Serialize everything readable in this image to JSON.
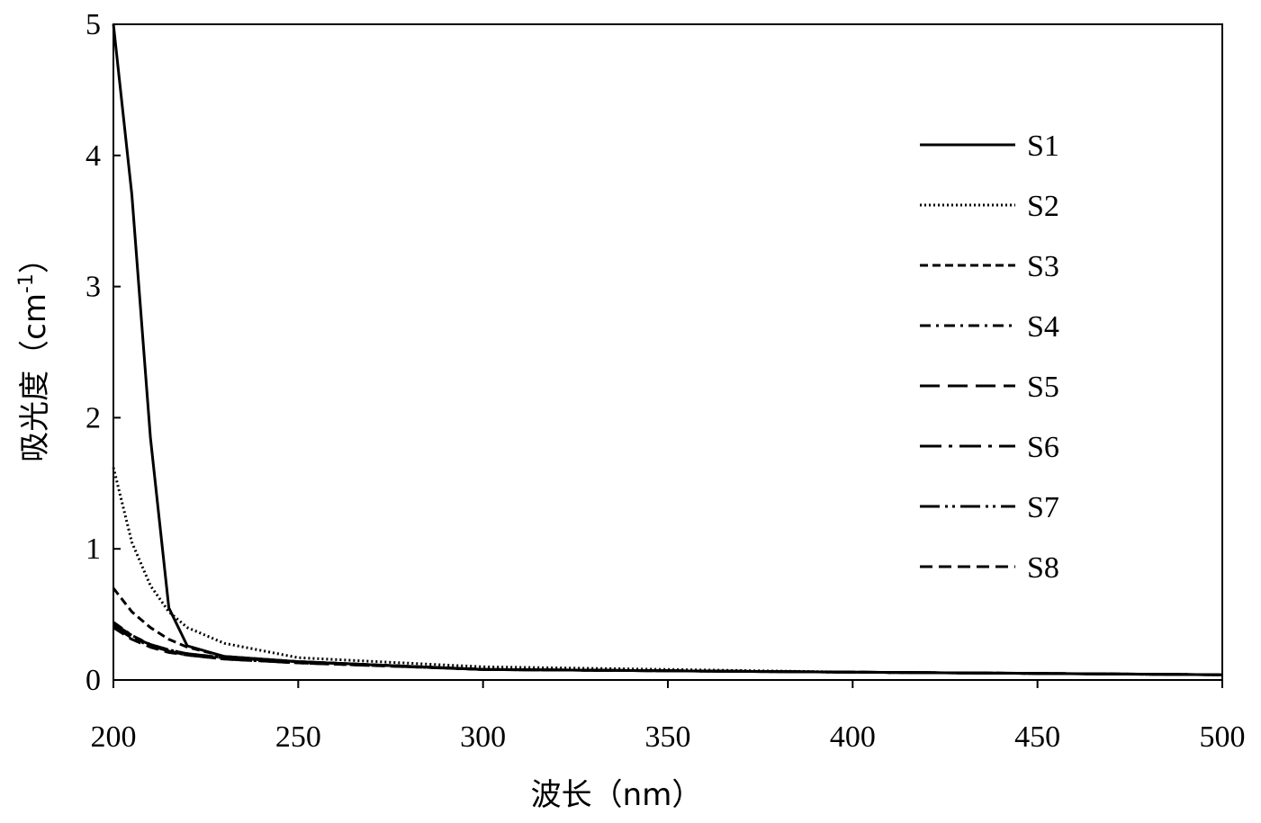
{
  "chart_data": {
    "type": "line",
    "title": "",
    "xlabel": "波长（nm）",
    "ylabel_main": "吸光度（cm",
    "ylabel_sup": "-1",
    "ylabel_close": "）",
    "xlim": [
      200,
      500
    ],
    "ylim": [
      0,
      5
    ],
    "xticks": [
      200,
      250,
      300,
      350,
      400,
      450,
      500
    ],
    "yticks": [
      0,
      1,
      2,
      3,
      4,
      5
    ],
    "grid": false,
    "legend_position": "right",
    "x": [
      200,
      205,
      210,
      215,
      220,
      230,
      250,
      300,
      350,
      400,
      450,
      500
    ],
    "series": [
      {
        "name": "S1",
        "style": "solid",
        "values": [
          5.0,
          3.7,
          1.85,
          0.55,
          0.26,
          0.18,
          0.14,
          0.08,
          0.07,
          0.06,
          0.05,
          0.04
        ]
      },
      {
        "name": "S2",
        "style": "dotted",
        "values": [
          1.62,
          1.05,
          0.72,
          0.52,
          0.4,
          0.28,
          0.17,
          0.1,
          0.08,
          0.06,
          0.05,
          0.04
        ]
      },
      {
        "name": "S3",
        "style": "dashed-short",
        "values": [
          0.7,
          0.52,
          0.4,
          0.31,
          0.25,
          0.18,
          0.14,
          0.08,
          0.07,
          0.06,
          0.05,
          0.04
        ]
      },
      {
        "name": "S4",
        "style": "dash-dot-short",
        "values": [
          0.44,
          0.34,
          0.27,
          0.23,
          0.2,
          0.17,
          0.14,
          0.08,
          0.07,
          0.06,
          0.05,
          0.04
        ]
      },
      {
        "name": "S5",
        "style": "dashed-long",
        "values": [
          0.42,
          0.33,
          0.27,
          0.22,
          0.19,
          0.17,
          0.14,
          0.08,
          0.07,
          0.06,
          0.05,
          0.04
        ]
      },
      {
        "name": "S6",
        "style": "dash-dot-long",
        "values": [
          0.43,
          0.34,
          0.27,
          0.23,
          0.2,
          0.17,
          0.14,
          0.08,
          0.07,
          0.06,
          0.05,
          0.04
        ]
      },
      {
        "name": "S7",
        "style": "dash-dot-dot",
        "values": [
          0.41,
          0.32,
          0.26,
          0.22,
          0.19,
          0.16,
          0.13,
          0.08,
          0.07,
          0.06,
          0.05,
          0.04
        ]
      },
      {
        "name": "S8",
        "style": "dashed-medium",
        "values": [
          0.4,
          0.31,
          0.25,
          0.21,
          0.19,
          0.16,
          0.13,
          0.08,
          0.07,
          0.06,
          0.05,
          0.04
        ]
      }
    ]
  }
}
